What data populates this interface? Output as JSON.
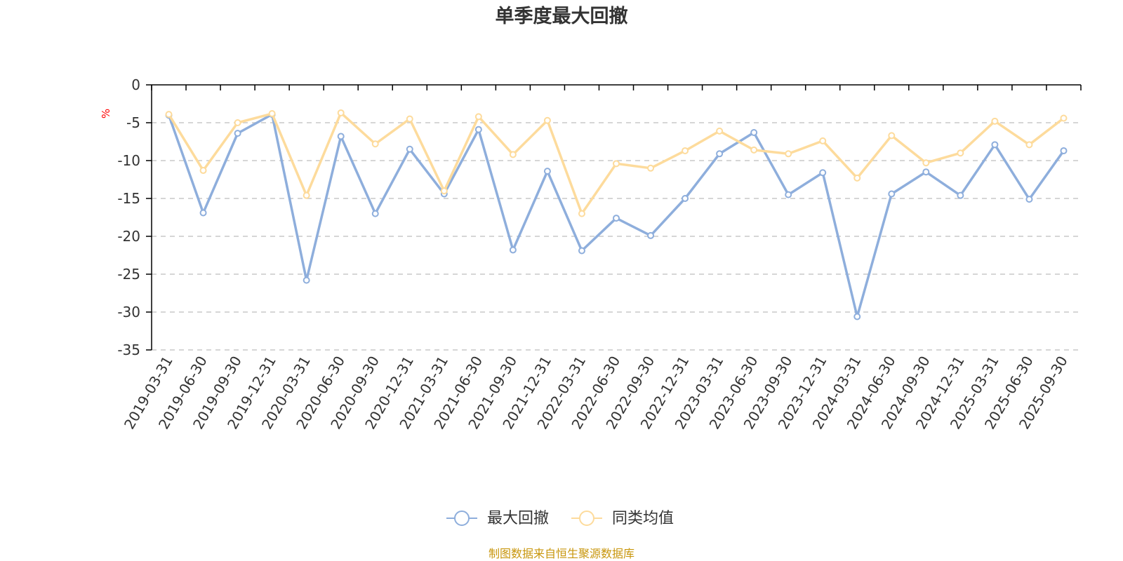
{
  "colors": {
    "series1": "#8eaedc",
    "series2": "#fddb9c",
    "unit": "#ff0000",
    "source": "#c8960c",
    "grid": "#c8c8c8",
    "axis": "#000000"
  },
  "chart_data": {
    "type": "line",
    "title": "单季度最大回撤",
    "ylabel": "%",
    "xlabel": "",
    "ylim": [
      -35,
      0
    ],
    "yticks": [
      "0",
      "-5",
      "-10",
      "-15",
      "-20",
      "-25",
      "-30",
      "-35"
    ],
    "grid": "horizontal dashed",
    "legend_position": "bottom-center",
    "categories": [
      "2019-03-31",
      "2019-06-30",
      "2019-09-30",
      "2019-12-31",
      "2020-03-31",
      "2020-06-30",
      "2020-09-30",
      "2020-12-31",
      "2021-03-31",
      "2021-06-30",
      "2021-09-30",
      "2021-12-31",
      "2022-03-31",
      "2022-06-30",
      "2022-09-30",
      "2022-12-31",
      "2023-03-31",
      "2023-06-30",
      "2023-09-30",
      "2023-12-31",
      "2024-03-31",
      "2024-06-30",
      "2024-09-30",
      "2024-12-31",
      "2025-03-31",
      "2025-06-30",
      "2025-09-30"
    ],
    "series": [
      {
        "name": "最大回撤",
        "values": [
          -4.0,
          -16.9,
          -6.4,
          -3.9,
          -25.8,
          -6.8,
          -17.0,
          -8.5,
          -14.4,
          -5.9,
          -21.8,
          -11.4,
          -21.9,
          -17.6,
          -19.9,
          -15.0,
          -9.1,
          -6.3,
          -14.5,
          -11.6,
          -30.6,
          -14.4,
          -11.5,
          -14.6,
          -7.9,
          -15.1,
          -8.7
        ]
      },
      {
        "name": "同类均值",
        "values": [
          -3.9,
          -11.3,
          -5.0,
          -3.8,
          -14.6,
          -3.7,
          -7.8,
          -4.5,
          -14.0,
          -4.2,
          -9.2,
          -4.7,
          -17.0,
          -10.4,
          -11.0,
          -8.7,
          -6.1,
          -8.6,
          -9.1,
          -7.4,
          -12.3,
          -6.7,
          -10.3,
          -9.0,
          -4.8,
          -7.9,
          -4.4
        ]
      }
    ]
  },
  "footer": {
    "source_text": "制图数据来自恒生聚源数据库"
  }
}
